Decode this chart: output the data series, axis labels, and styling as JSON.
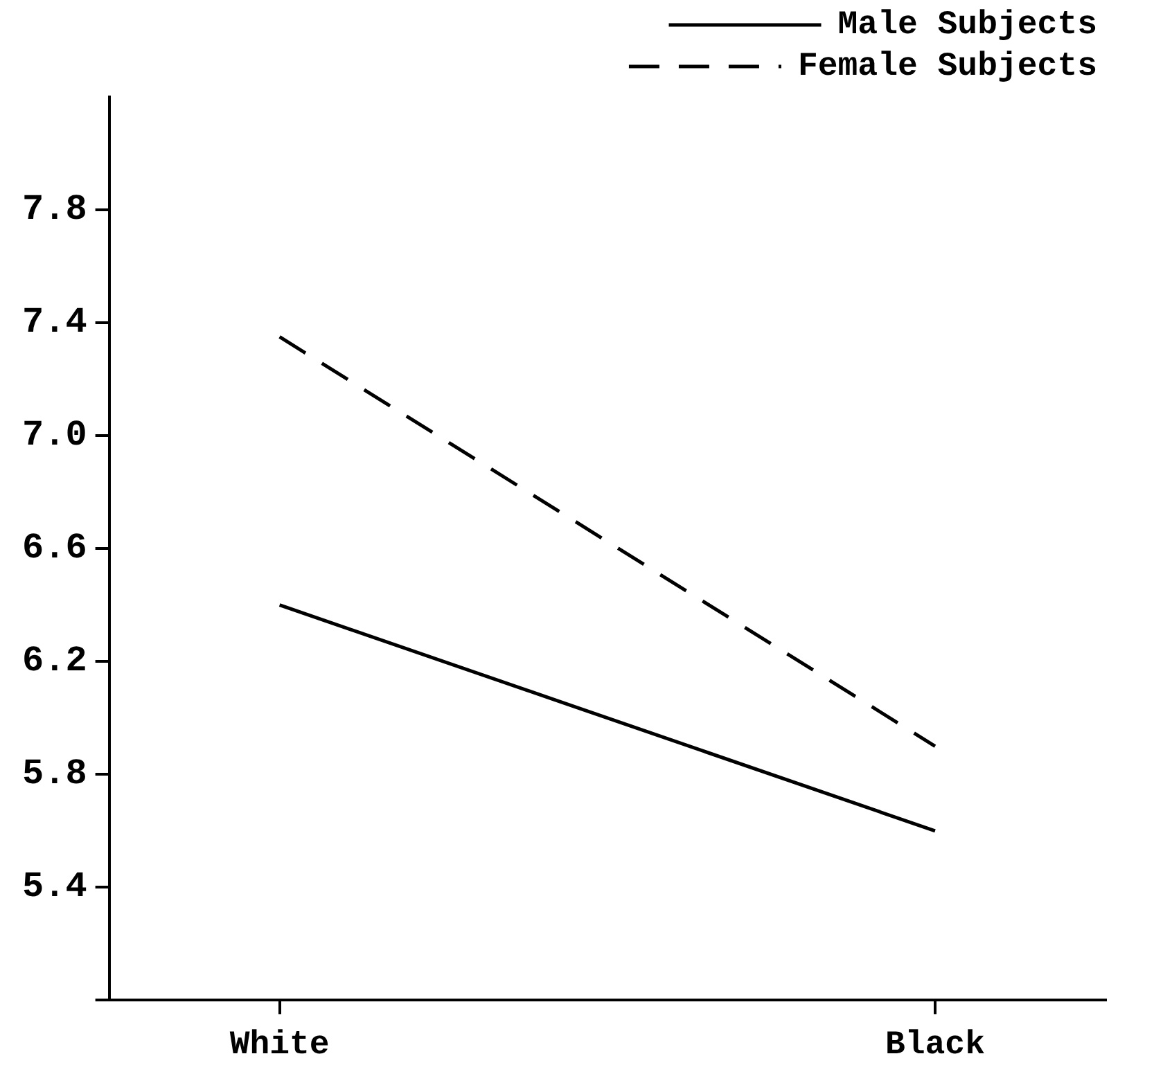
{
  "chart_data": {
    "type": "line",
    "categories": [
      "White",
      "Black"
    ],
    "series": [
      {
        "name": "Male Subjects",
        "color": "#000000",
        "values": [
          6.4,
          5.6
        ],
        "line_style": "solid"
      },
      {
        "name": "Female Subjects",
        "color": "#000000",
        "values": [
          7.35,
          5.9
        ],
        "line_style": "dashed"
      }
    ],
    "ylim": [
      5.0,
      8.2
    ],
    "yticks": [
      {
        "value": 5.0,
        "label": null
      },
      5.4,
      5.8,
      6.2,
      6.6,
      {
        "value": 7.0,
        "label": "7.0"
      },
      7.4,
      7.8
    ],
    "grid": false,
    "legend": "top right",
    "marker": "none"
  }
}
